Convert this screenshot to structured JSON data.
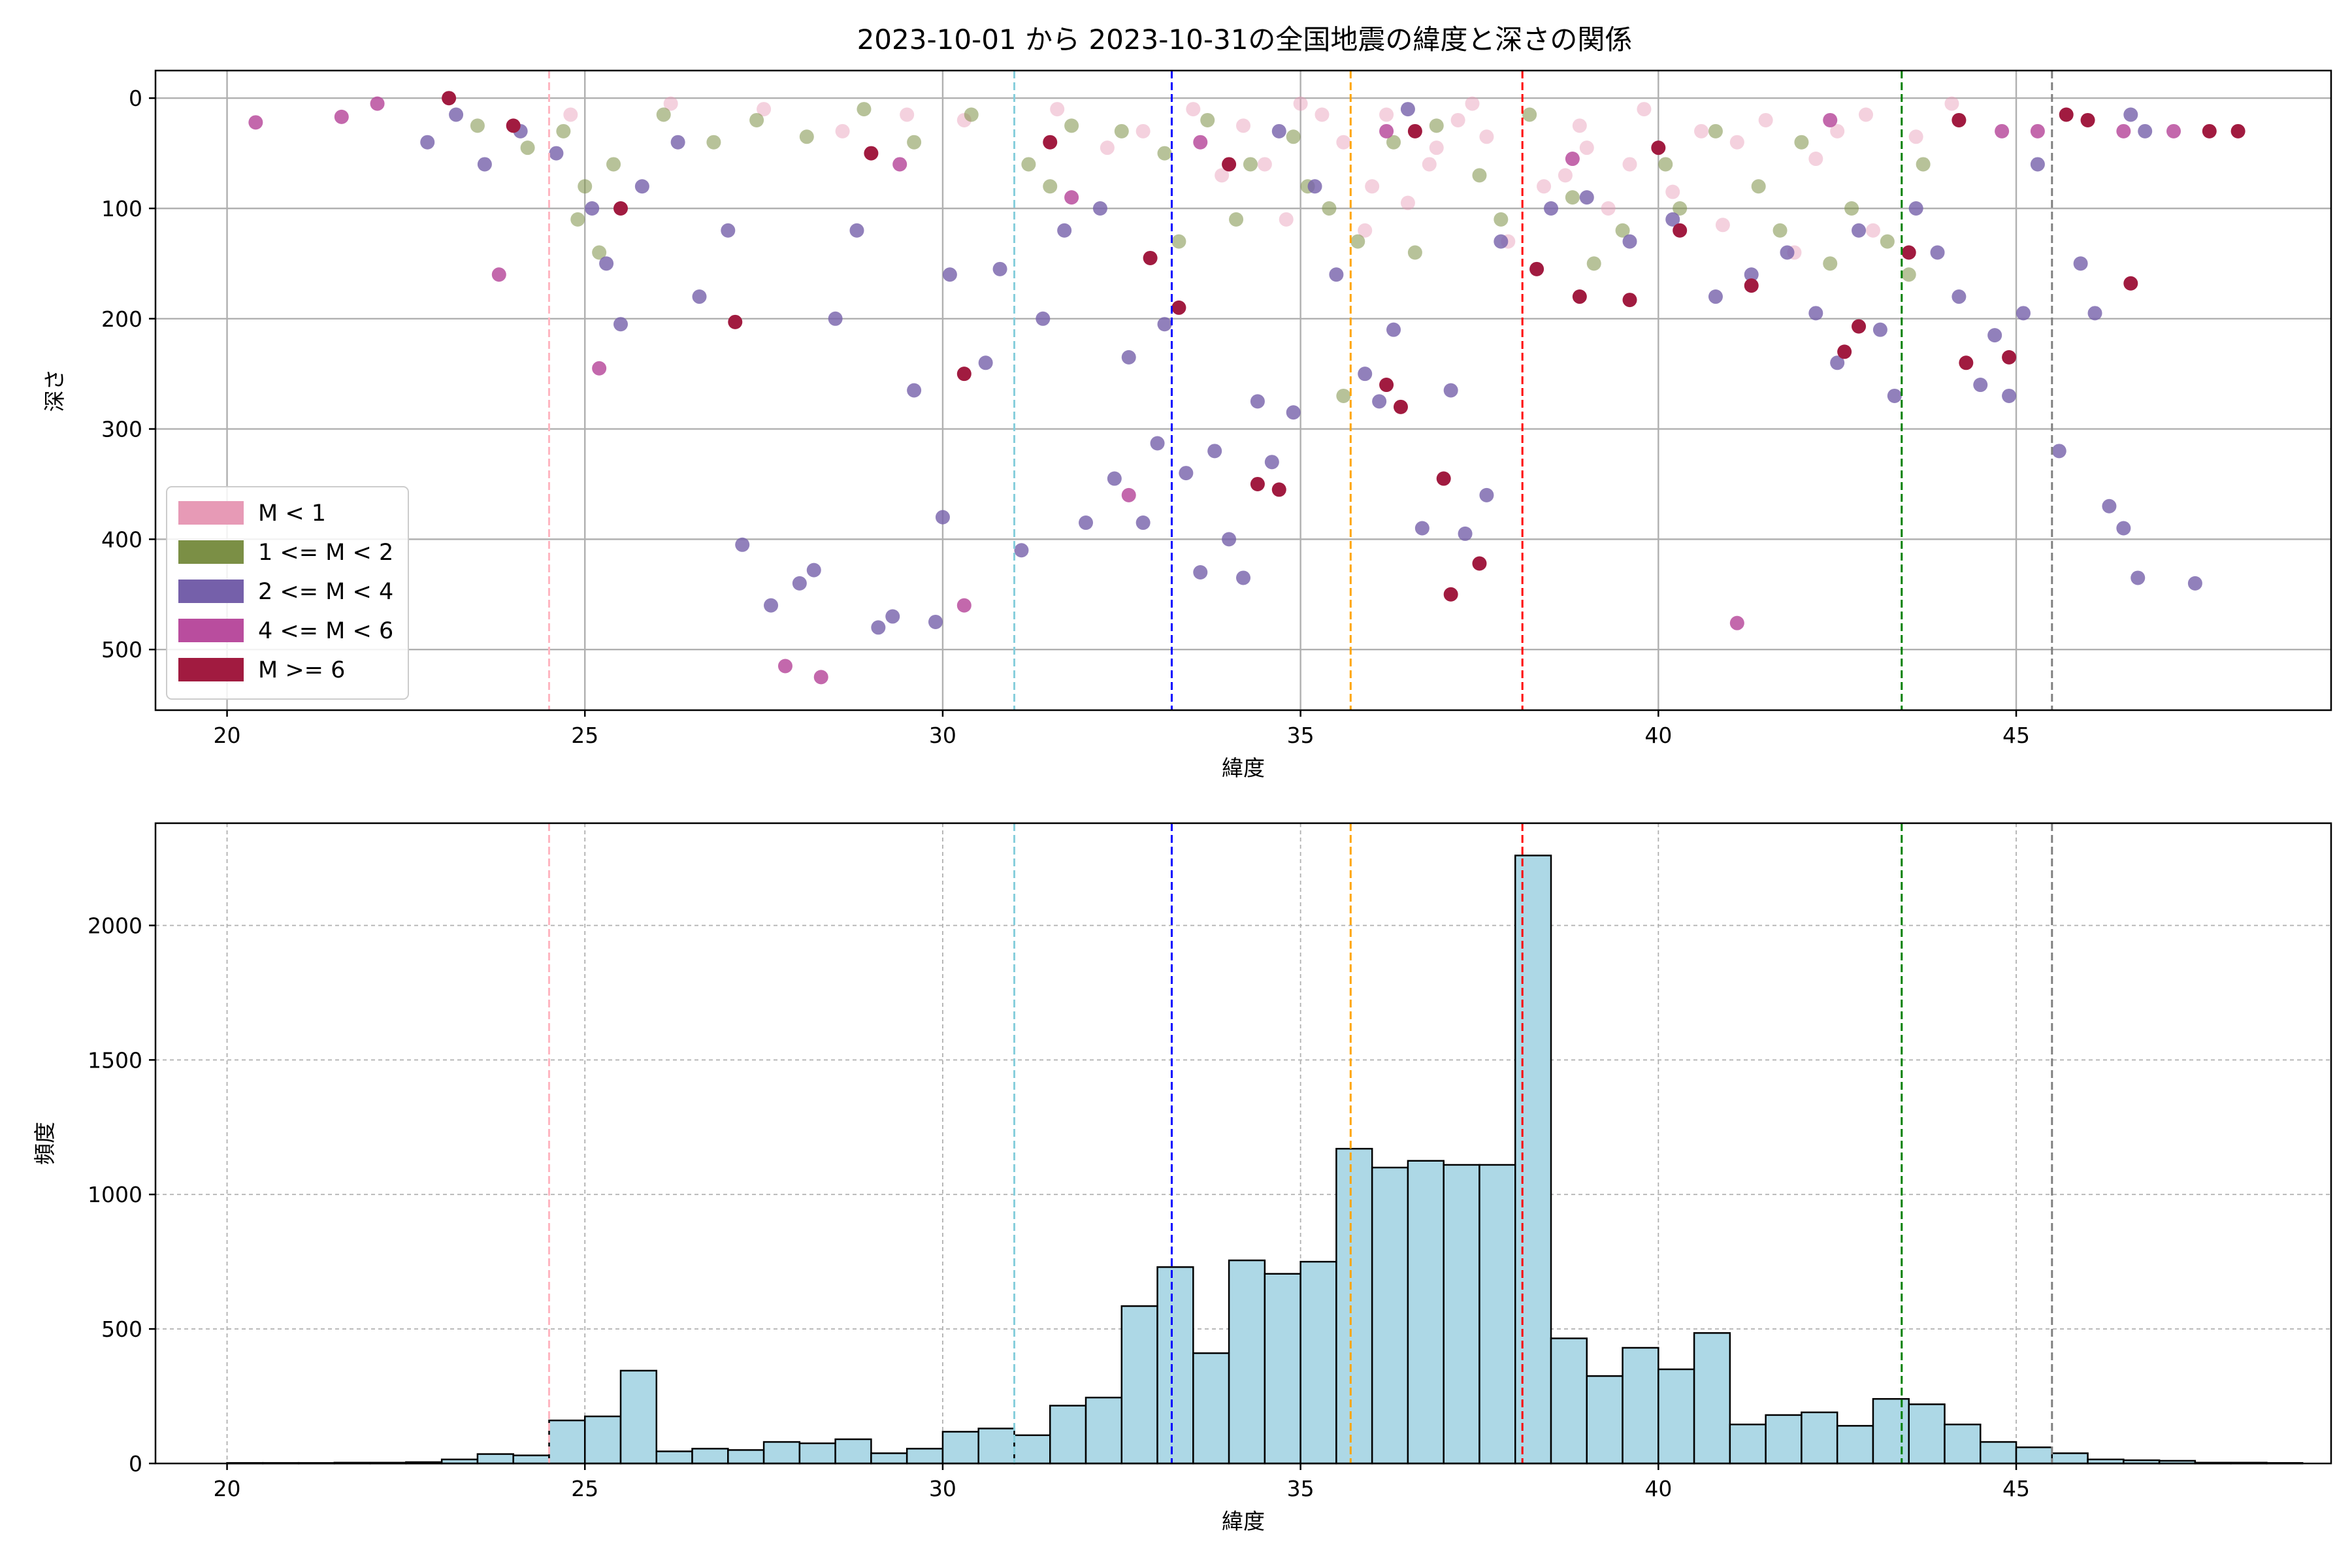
{
  "chart_data": [
    {
      "type": "scatter",
      "title": "2023-10-01 から 2023-10-31の全国地震の緯度と深さの関係",
      "xlabel": "緯度",
      "ylabel": "深さ",
      "xlim": [
        19,
        49.4
      ],
      "ylim": [
        555,
        -25
      ],
      "y_inverted": true,
      "xticks": [
        20,
        25,
        30,
        35,
        40,
        45
      ],
      "yticks": [
        0,
        100,
        200,
        300,
        400,
        500
      ],
      "grid": true,
      "legend_position": "lower-left",
      "vlines": [
        {
          "x": 24.5,
          "color": "#ffb6c1"
        },
        {
          "x": 31.0,
          "color": "#87cedc"
        },
        {
          "x": 33.2,
          "color": "#0000ff"
        },
        {
          "x": 35.7,
          "color": "#ffa500"
        },
        {
          "x": 38.1,
          "color": "#ff0000"
        },
        {
          "x": 43.4,
          "color": "#008000"
        },
        {
          "x": 45.5,
          "color": "#808080"
        }
      ],
      "series": [
        {
          "name": "M < 1",
          "color": "#e79ab6",
          "alpha": 0.45,
          "points": [
            [
              33.5,
              10
            ],
            [
              34.2,
              25
            ],
            [
              35.0,
              5
            ],
            [
              35.6,
              40
            ],
            [
              36.2,
              15
            ],
            [
              36.8,
              60
            ],
            [
              37.2,
              20
            ],
            [
              37.6,
              35
            ],
            [
              38.4,
              80
            ],
            [
              39.0,
              45
            ],
            [
              39.8,
              10
            ],
            [
              40.6,
              30
            ],
            [
              41.5,
              20
            ],
            [
              42.2,
              55
            ],
            [
              42.9,
              15
            ],
            [
              43.6,
              35
            ],
            [
              44.1,
              5
            ],
            [
              32.8,
              30
            ],
            [
              33.9,
              70
            ],
            [
              34.8,
              110
            ],
            [
              35.9,
              120
            ],
            [
              36.5,
              95
            ],
            [
              37.9,
              130
            ],
            [
              39.3,
              100
            ],
            [
              40.9,
              115
            ],
            [
              41.9,
              140
            ],
            [
              34.5,
              60
            ],
            [
              36.0,
              80
            ],
            [
              38.7,
              70
            ],
            [
              40.2,
              85
            ],
            [
              29.5,
              15
            ],
            [
              30.3,
              20
            ],
            [
              31.6,
              10
            ],
            [
              32.3,
              45
            ],
            [
              35.3,
              15
            ],
            [
              36.9,
              45
            ],
            [
              37.4,
              5
            ],
            [
              38.9,
              25
            ],
            [
              39.6,
              60
            ],
            [
              41.1,
              40
            ],
            [
              42.5,
              30
            ],
            [
              43.0,
              120
            ],
            [
              27.5,
              10
            ],
            [
              28.6,
              30
            ],
            [
              26.2,
              5
            ],
            [
              24.8,
              15
            ]
          ]
        },
        {
          "name": "1 <= M < 2",
          "color": "#7b8f45",
          "alpha": 0.55,
          "points": [
            [
              23.5,
              25
            ],
            [
              24.2,
              45
            ],
            [
              24.7,
              30
            ],
            [
              25.0,
              80
            ],
            [
              25.4,
              60
            ],
            [
              26.1,
              15
            ],
            [
              26.8,
              40
            ],
            [
              27.4,
              20
            ],
            [
              28.1,
              35
            ],
            [
              28.9,
              10
            ],
            [
              29.6,
              40
            ],
            [
              30.4,
              15
            ],
            [
              31.2,
              60
            ],
            [
              31.8,
              25
            ],
            [
              32.5,
              30
            ],
            [
              33.1,
              50
            ],
            [
              33.7,
              20
            ],
            [
              34.3,
              60
            ],
            [
              34.9,
              35
            ],
            [
              35.4,
              100
            ],
            [
              35.8,
              130
            ],
            [
              36.3,
              40
            ],
            [
              36.9,
              25
            ],
            [
              37.5,
              70
            ],
            [
              38.2,
              15
            ],
            [
              38.8,
              90
            ],
            [
              39.5,
              120
            ],
            [
              40.1,
              60
            ],
            [
              40.8,
              30
            ],
            [
              41.4,
              80
            ],
            [
              42.0,
              40
            ],
            [
              42.7,
              100
            ],
            [
              43.2,
              130
            ],
            [
              43.7,
              60
            ],
            [
              44.2,
              20
            ],
            [
              34.1,
              110
            ],
            [
              35.1,
              80
            ],
            [
              36.6,
              140
            ],
            [
              37.8,
              110
            ],
            [
              39.1,
              150
            ],
            [
              40.3,
              100
            ],
            [
              42.4,
              150
            ],
            [
              33.3,
              130
            ],
            [
              31.5,
              80
            ],
            [
              35.6,
              270
            ],
            [
              25.2,
              140
            ],
            [
              24.9,
              110
            ],
            [
              41.7,
              120
            ],
            [
              43.5,
              160
            ]
          ]
        },
        {
          "name": "2 <= M < 4",
          "color": "#7560aa",
          "alpha": 0.8,
          "points": [
            [
              22.8,
              40
            ],
            [
              23.2,
              15
            ],
            [
              23.6,
              60
            ],
            [
              24.1,
              30
            ],
            [
              24.6,
              50
            ],
            [
              25.1,
              100
            ],
            [
              25.3,
              150
            ],
            [
              25.5,
              205
            ],
            [
              25.8,
              80
            ],
            [
              26.3,
              40
            ],
            [
              26.6,
              180
            ],
            [
              27.0,
              120
            ],
            [
              27.2,
              405
            ],
            [
              27.6,
              460
            ],
            [
              28.0,
              440
            ],
            [
              28.2,
              428
            ],
            [
              28.5,
              200
            ],
            [
              28.8,
              120
            ],
            [
              29.1,
              480
            ],
            [
              29.3,
              470
            ],
            [
              29.6,
              265
            ],
            [
              29.9,
              475
            ],
            [
              30.0,
              380
            ],
            [
              30.1,
              160
            ],
            [
              30.6,
              240
            ],
            [
              30.8,
              155
            ],
            [
              31.1,
              410
            ],
            [
              31.4,
              200
            ],
            [
              31.7,
              120
            ],
            [
              32.0,
              385
            ],
            [
              32.2,
              100
            ],
            [
              32.4,
              345
            ],
            [
              32.6,
              235
            ],
            [
              32.8,
              385
            ],
            [
              33.0,
              313
            ],
            [
              33.1,
              205
            ],
            [
              33.4,
              340
            ],
            [
              33.6,
              430
            ],
            [
              33.8,
              320
            ],
            [
              34.0,
              400
            ],
            [
              34.2,
              435
            ],
            [
              34.4,
              275
            ],
            [
              34.6,
              330
            ],
            [
              34.9,
              285
            ],
            [
              35.2,
              80
            ],
            [
              35.5,
              160
            ],
            [
              35.9,
              250
            ],
            [
              36.1,
              275
            ],
            [
              36.3,
              210
            ],
            [
              36.7,
              390
            ],
            [
              37.1,
              265
            ],
            [
              37.3,
              395
            ],
            [
              37.6,
              360
            ],
            [
              37.8,
              130
            ],
            [
              38.5,
              100
            ],
            [
              39.0,
              90
            ],
            [
              39.6,
              130
            ],
            [
              40.2,
              110
            ],
            [
              40.8,
              180
            ],
            [
              41.3,
              160
            ],
            [
              41.8,
              140
            ],
            [
              42.2,
              195
            ],
            [
              42.5,
              240
            ],
            [
              42.8,
              120
            ],
            [
              43.1,
              210
            ],
            [
              43.3,
              270
            ],
            [
              43.6,
              100
            ],
            [
              43.9,
              140
            ],
            [
              44.2,
              180
            ],
            [
              44.5,
              260
            ],
            [
              44.7,
              215
            ],
            [
              44.9,
              270
            ],
            [
              45.1,
              195
            ],
            [
              45.3,
              60
            ],
            [
              45.6,
              320
            ],
            [
              45.9,
              150
            ],
            [
              46.1,
              195
            ],
            [
              46.3,
              370
            ],
            [
              46.5,
              390
            ],
            [
              46.7,
              435
            ],
            [
              47.5,
              440
            ],
            [
              46.6,
              15
            ],
            [
              46.8,
              30
            ],
            [
              34.7,
              30
            ],
            [
              36.5,
              10
            ]
          ]
        },
        {
          "name": "4 <= M < 6",
          "color": "#b94d9e",
          "alpha": 0.85,
          "points": [
            [
              20.4,
              22
            ],
            [
              21.6,
              17
            ],
            [
              22.1,
              5
            ],
            [
              23.8,
              160
            ],
            [
              25.2,
              245
            ],
            [
              27.8,
              515
            ],
            [
              28.3,
              525
            ],
            [
              30.3,
              460
            ],
            [
              32.6,
              360
            ],
            [
              41.1,
              476
            ],
            [
              33.6,
              40
            ],
            [
              36.2,
              30
            ],
            [
              38.8,
              55
            ],
            [
              42.4,
              20
            ],
            [
              44.8,
              30
            ],
            [
              45.3,
              30
            ],
            [
              46.5,
              30
            ],
            [
              47.2,
              30
            ],
            [
              29.4,
              60
            ],
            [
              31.8,
              90
            ]
          ]
        },
        {
          "name": "M >= 6",
          "color": "#a11b40",
          "alpha": 1.0,
          "points": [
            [
              23.1,
              0
            ],
            [
              24.0,
              25
            ],
            [
              25.5,
              100
            ],
            [
              27.1,
              203
            ],
            [
              29.0,
              50
            ],
            [
              30.3,
              250
            ],
            [
              31.5,
              40
            ],
            [
              32.9,
              145
            ],
            [
              33.3,
              190
            ],
            [
              34.0,
              60
            ],
            [
              34.4,
              350
            ],
            [
              34.7,
              355
            ],
            [
              36.2,
              260
            ],
            [
              36.4,
              280
            ],
            [
              37.0,
              345
            ],
            [
              37.1,
              450
            ],
            [
              37.5,
              422
            ],
            [
              38.3,
              155
            ],
            [
              38.9,
              180
            ],
            [
              39.6,
              183
            ],
            [
              40.3,
              120
            ],
            [
              41.3,
              170
            ],
            [
              42.6,
              230
            ],
            [
              42.8,
              207
            ],
            [
              43.5,
              140
            ],
            [
              44.2,
              20
            ],
            [
              44.3,
              240
            ],
            [
              44.9,
              235
            ],
            [
              45.7,
              15
            ],
            [
              46.0,
              20
            ],
            [
              46.6,
              168
            ],
            [
              47.7,
              30
            ],
            [
              48.1,
              30
            ],
            [
              36.6,
              30
            ],
            [
              40.0,
              45
            ]
          ]
        }
      ]
    },
    {
      "type": "bar",
      "subtype": "histogram",
      "xlabel": "緯度",
      "ylabel": "頻度",
      "xlim": [
        19,
        49.4
      ],
      "ylim": [
        0,
        2380
      ],
      "xticks": [
        20,
        25,
        30,
        35,
        40,
        45
      ],
      "yticks": [
        0,
        500,
        1000,
        1500,
        2000
      ],
      "grid": true,
      "bar_color": "#add8e6",
      "edge_color": "#000000",
      "bin_start": 20.0,
      "bin_width": 0.5,
      "values": [
        2,
        2,
        2,
        3,
        3,
        5,
        15,
        35,
        30,
        160,
        175,
        345,
        45,
        55,
        50,
        80,
        75,
        90,
        38,
        55,
        118,
        130,
        105,
        215,
        245,
        585,
        730,
        410,
        755,
        705,
        750,
        1170,
        1100,
        1125,
        1110,
        1110,
        2260,
        465,
        325,
        430,
        350,
        485,
        145,
        180,
        190,
        140,
        240,
        220,
        145,
        80,
        60,
        38,
        15,
        12,
        10,
        3,
        3,
        2
      ],
      "vlines": [
        {
          "x": 24.5,
          "color": "#ffb6c1"
        },
        {
          "x": 31.0,
          "color": "#87cedc"
        },
        {
          "x": 33.2,
          "color": "#0000ff"
        },
        {
          "x": 35.7,
          "color": "#ffa500"
        },
        {
          "x": 38.1,
          "color": "#ff0000"
        },
        {
          "x": 43.4,
          "color": "#008000"
        },
        {
          "x": 45.5,
          "color": "#808080"
        }
      ]
    }
  ]
}
